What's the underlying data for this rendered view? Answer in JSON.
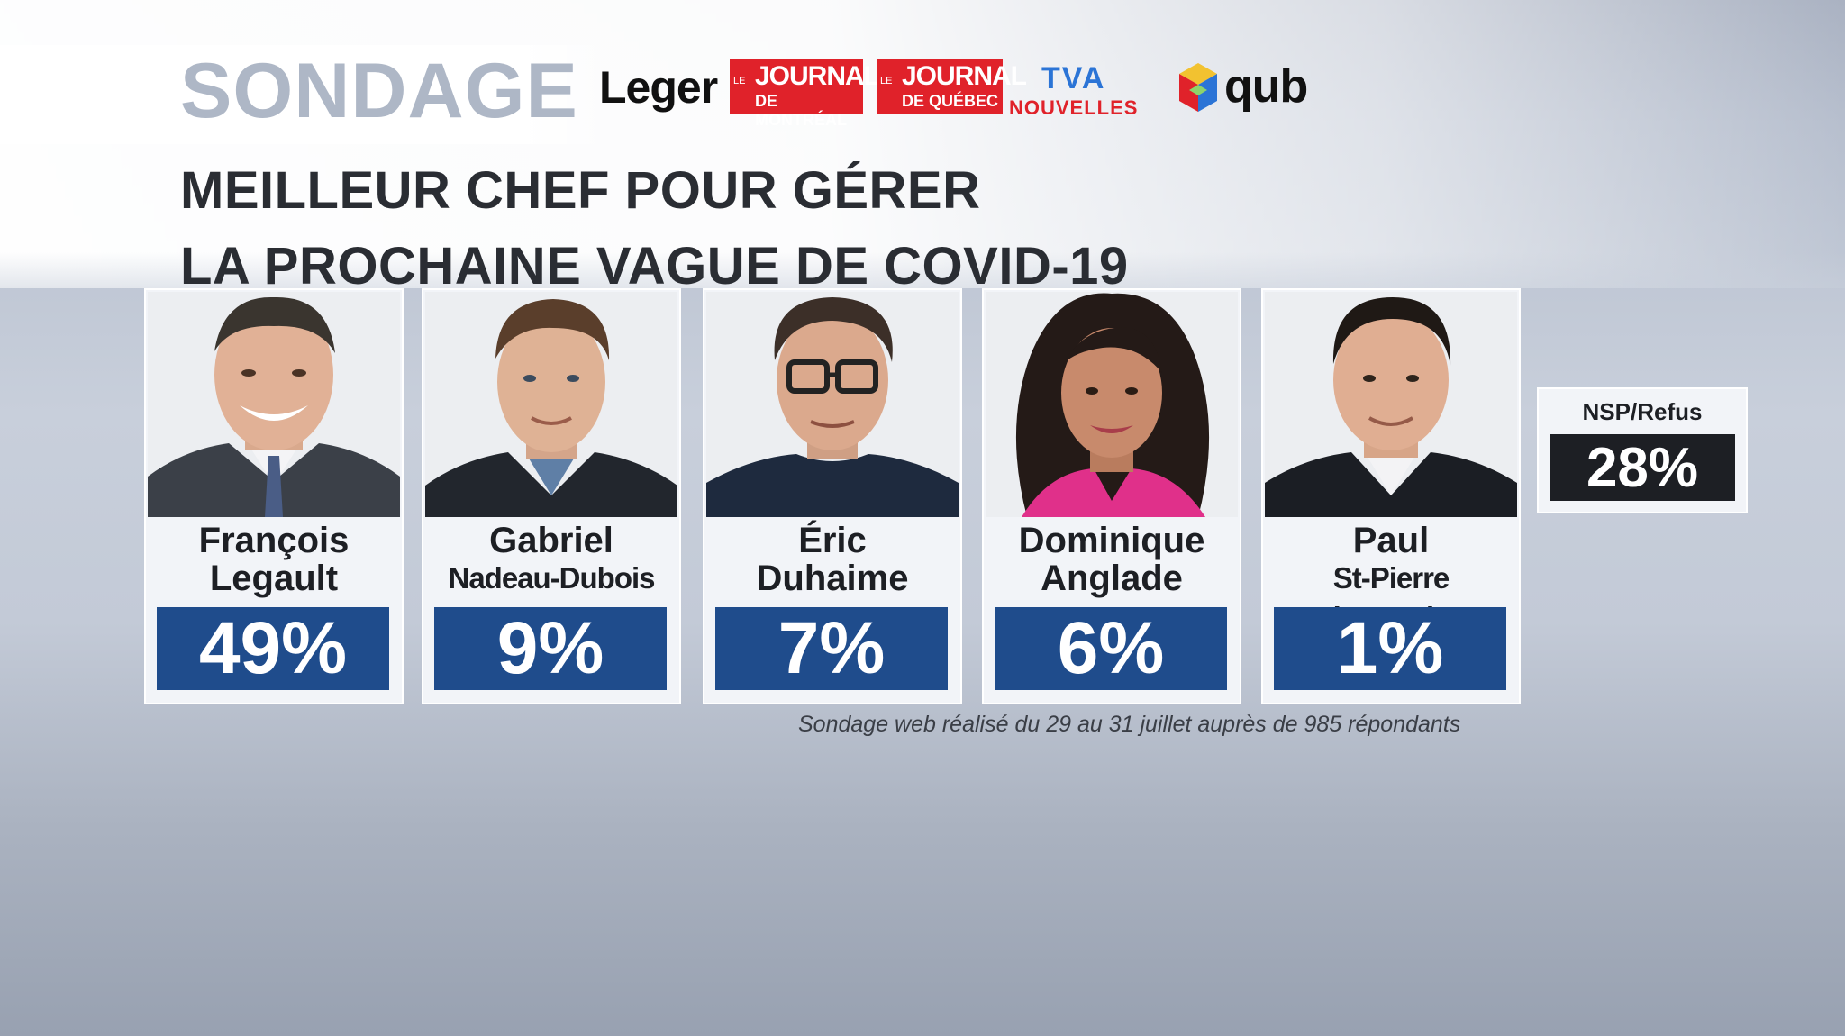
{
  "header": {
    "label": "SONDAGE",
    "logos": {
      "leger": "Leger",
      "journal_montreal": {
        "le": "LE",
        "journal": "JOURNAL",
        "city": "DE MONTRÉAL"
      },
      "journal_quebec": {
        "le": "LE",
        "journal": "JOURNAL",
        "city": "DE QUÉBEC"
      },
      "tva": {
        "top": "TVA",
        "bottom": "NOUVELLES"
      },
      "qub": "qub"
    }
  },
  "headline": {
    "line1": "MEILLEUR CHEF POUR GÉRER",
    "line2": "LA PROCHAINE VAGUE DE COVID-19"
  },
  "candidates": [
    {
      "first": "François",
      "last": "Legault",
      "percent": "49%",
      "value": 49
    },
    {
      "first": "Gabriel",
      "last": "Nadeau-Dubois",
      "percent": "9%",
      "value": 9
    },
    {
      "first": "Éric",
      "last": "Duhaime",
      "percent": "7%",
      "value": 7
    },
    {
      "first": "Dominique",
      "last": "Anglade",
      "percent": "6%",
      "value": 6
    },
    {
      "first": "Paul",
      "last": "St-Pierre Plamondon",
      "percent": "1%",
      "value": 1
    }
  ],
  "nsp": {
    "label": "NSP/Refus",
    "percent": "28%",
    "value": 28
  },
  "footnote": "Sondage web réalisé du 29 au 31 juillet auprès de 985 répondants",
  "colors": {
    "bar": "#1f4c8c",
    "nsp_bar": "#1d1f24",
    "sondage": "#aeb7c6",
    "brand_red": "#e0222a"
  }
}
